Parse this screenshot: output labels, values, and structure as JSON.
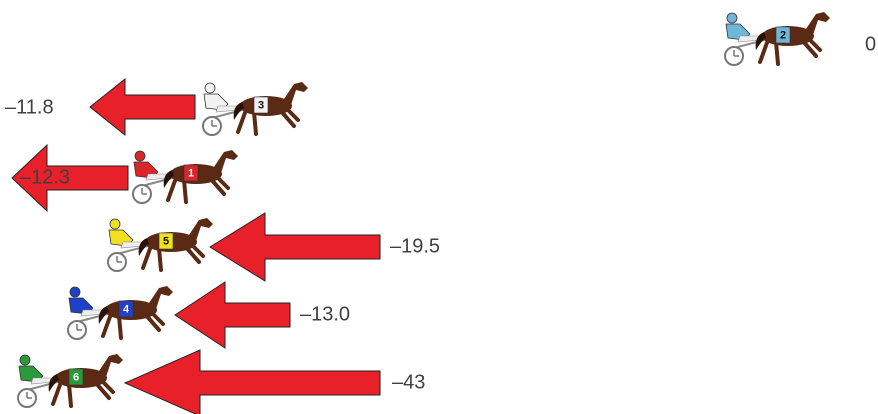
{
  "horses": [
    {
      "number": "2",
      "label": "0.0",
      "color": "#6fb6d8"
    },
    {
      "number": "3",
      "label": "–11.8",
      "color": "#f2f2f2"
    },
    {
      "number": "1",
      "label": "–12.3",
      "color": "#d9262b"
    },
    {
      "number": "5",
      "label": "–19.5",
      "color": "#f0e020"
    },
    {
      "number": "4",
      "label": "–13.0",
      "color": "#2040c8"
    },
    {
      "number": "6",
      "label": "–43",
      "color": "#2a9a3a"
    }
  ]
}
